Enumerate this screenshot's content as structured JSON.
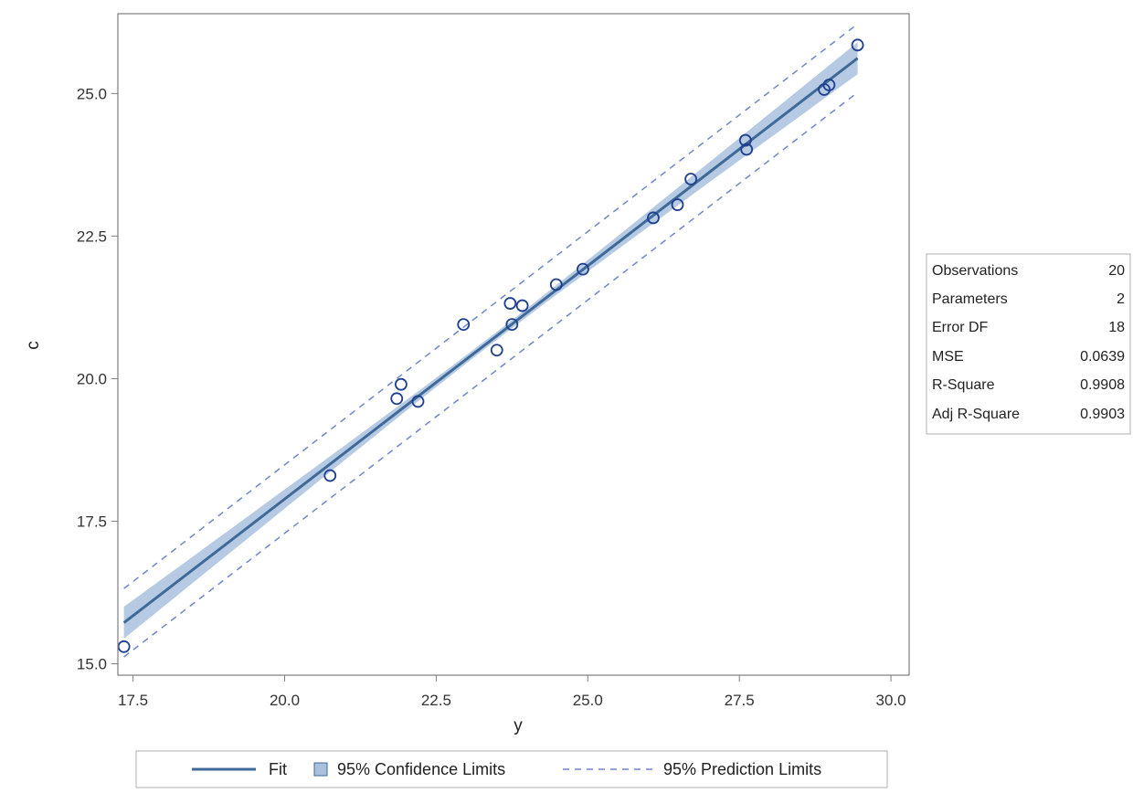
{
  "chart_data": {
    "type": "scatter",
    "title": "",
    "xlabel": "y",
    "ylabel": "c",
    "xlim": [
      17.25,
      30.3
    ],
    "ylim": [
      14.8,
      26.4
    ],
    "x_ticks": [
      "17.5",
      "20.0",
      "22.5",
      "25.0",
      "27.5",
      "30.0"
    ],
    "y_ticks": [
      "15.0",
      "17.5",
      "20.0",
      "22.5",
      "25.0"
    ],
    "grid": false,
    "points": [
      {
        "x": 17.35,
        "y": 15.3
      },
      {
        "x": 20.75,
        "y": 18.3
      },
      {
        "x": 21.85,
        "y": 19.65
      },
      {
        "x": 21.92,
        "y": 19.9
      },
      {
        "x": 22.2,
        "y": 19.6
      },
      {
        "x": 22.95,
        "y": 20.95
      },
      {
        "x": 23.5,
        "y": 20.5
      },
      {
        "x": 23.72,
        "y": 21.32
      },
      {
        "x": 23.75,
        "y": 20.95
      },
      {
        "x": 23.92,
        "y": 21.28
      },
      {
        "x": 24.48,
        "y": 21.65
      },
      {
        "x": 24.92,
        "y": 21.92
      },
      {
        "x": 26.08,
        "y": 22.82
      },
      {
        "x": 26.48,
        "y": 23.05
      },
      {
        "x": 26.7,
        "y": 23.5
      },
      {
        "x": 27.6,
        "y": 24.18
      },
      {
        "x": 27.62,
        "y": 24.02
      },
      {
        "x": 28.9,
        "y": 25.07
      },
      {
        "x": 28.98,
        "y": 25.15
      },
      {
        "x": 29.45,
        "y": 25.85
      }
    ],
    "fit": {
      "x": [
        17.35,
        29.45
      ],
      "y": [
        15.72,
        25.62
      ]
    },
    "confidence_halfwidth": {
      "at_ends": 0.28,
      "at_center": 0.07
    },
    "prediction_halfwidth": 0.6,
    "fit_statistics": [
      {
        "label": "Observations",
        "value": "20"
      },
      {
        "label": "Parameters",
        "value": "2"
      },
      {
        "label": "Error DF",
        "value": "18"
      },
      {
        "label": "MSE",
        "value": "0.0639"
      },
      {
        "label": "R-Square",
        "value": "0.9908"
      },
      {
        "label": "Adj R-Square",
        "value": "0.9903"
      }
    ],
    "legend": {
      "placement": "bottom",
      "items": [
        "Fit",
        "95% Confidence Limits",
        "95% Prediction Limits"
      ]
    },
    "colors": {
      "fit_line": "#3F6A97",
      "confidence_band": "#A9C1DE",
      "prediction_line": "#6F86C9",
      "marker": "#1F3F8F",
      "axis": "#7F7F7F"
    }
  }
}
